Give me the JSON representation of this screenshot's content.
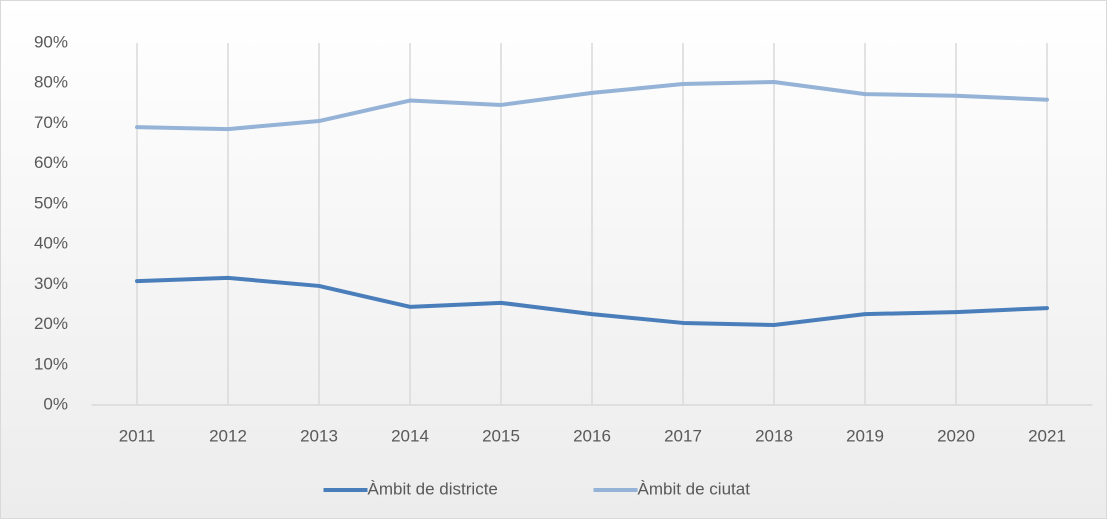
{
  "chart_data": {
    "type": "line",
    "categories": [
      "2011",
      "2012",
      "2013",
      "2014",
      "2015",
      "2016",
      "2017",
      "2018",
      "2019",
      "2020",
      "2021"
    ],
    "series": [
      {
        "name": "Àmbit de districte",
        "color": "#4a7ebb",
        "values": [
          30.8,
          31.6,
          29.6,
          24.4,
          25.4,
          22.6,
          20.4,
          19.9,
          22.6,
          23.1,
          24.1
        ]
      },
      {
        "name": "Àmbit de ciutat",
        "color": "#95b3d7",
        "values": [
          69.1,
          68.6,
          70.6,
          75.7,
          74.6,
          77.6,
          79.8,
          80.3,
          77.3,
          76.9,
          75.9
        ]
      }
    ],
    "ylim": [
      0,
      90
    ],
    "yticks": [
      {
        "value": 0,
        "label": "0%"
      },
      {
        "value": 10,
        "label": "10%"
      },
      {
        "value": 20,
        "label": "20%"
      },
      {
        "value": 30,
        "label": "30%"
      },
      {
        "value": 40,
        "label": "40%"
      },
      {
        "value": 50,
        "label": "50%"
      },
      {
        "value": 60,
        "label": "60%"
      },
      {
        "value": 70,
        "label": "70%"
      },
      {
        "value": 80,
        "label": "80%"
      },
      {
        "value": 90,
        "label": "90%"
      }
    ],
    "grid": true,
    "legend": "bottom"
  }
}
